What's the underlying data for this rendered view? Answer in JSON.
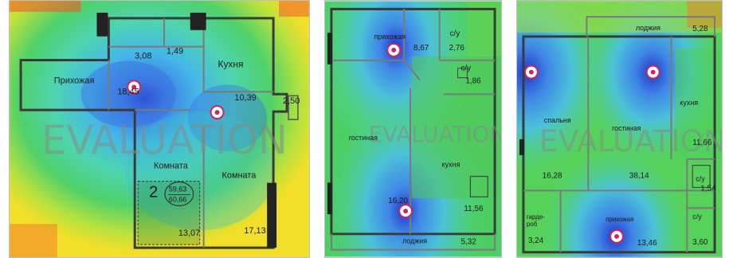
{
  "watermark": "EVALUATION",
  "plans": [
    {
      "rooms": {
        "hall": "Прихожая",
        "kitchen": "Кухня",
        "room1": "Комната",
        "room2": "Комната"
      },
      "areas": {
        "a1": "3,08",
        "a2": "1,49",
        "hall": "18,45",
        "kitchen": "10,39",
        "balcony": "2,50",
        "room1": "13,07",
        "room2": "17,13"
      },
      "apartment": {
        "rooms_count": "2",
        "area_living": "59,63",
        "area_total": "60,66"
      }
    },
    {
      "rooms": {
        "hall": "прихожая",
        "bath1": "с/у",
        "bath2": "с/у",
        "living": "гостиная",
        "kitchen": "кухня",
        "loggia": "лоджия"
      },
      "areas": {
        "hall": "8,67",
        "bath1": "2,76",
        "bath2": "1,86",
        "living": "16,20",
        "kitchen": "11,56",
        "loggia": "5,32"
      }
    },
    {
      "rooms": {
        "loggia": "лоджия",
        "bedroom": "спальня",
        "living": "гостиная",
        "kitchen": "кухня",
        "bath1": "с/у",
        "bath2": "с/у",
        "wardrobe": "гарде-\nроб",
        "hall": "прихожая"
      },
      "areas": {
        "loggia": "5,28",
        "bedroom": "16,28",
        "living": "38,14",
        "kitchen": "11,66",
        "bath1": "1,54",
        "wardrobe": "3,24",
        "hall": "13,46",
        "bath2": "3,60"
      }
    }
  ]
}
